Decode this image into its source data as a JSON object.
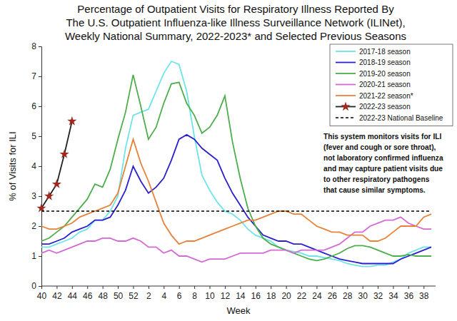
{
  "chart_data": {
    "type": "line",
    "title": [
      "Percentage of Outpatient Visits for Respiratory Illness Reported By",
      "The U.S. Outpatient Influenza-like Illness Surveillance Network (ILINet),",
      "Weekly National Summary, 2022-2023* and Selected Previous Seasons"
    ],
    "x_label": "Week",
    "y_label": "% of Visits for ILI",
    "annotation": [
      "This system monitors visits for ILI",
      "(fever and cough or sore throat),",
      "not laboratory confirmed influenza",
      "and may capture patient visits due",
      "to other respiratory pathogens",
      "that cause similar symptoms."
    ],
    "categories": [
      "40",
      null,
      "42",
      null,
      "44",
      null,
      "46",
      null,
      "48",
      null,
      "50",
      null,
      "52",
      null,
      "2",
      null,
      "4",
      null,
      "6",
      null,
      "8",
      null,
      "10",
      null,
      "12",
      null,
      "14",
      null,
      "16",
      null,
      "18",
      null,
      "20",
      null,
      "22",
      null,
      "24",
      null,
      "26",
      null,
      "28",
      null,
      "30",
      null,
      "32",
      null,
      "34",
      null,
      "36",
      null,
      "38",
      null
    ],
    "ylim": [
      0,
      8
    ],
    "yticks": [
      0,
      1,
      2,
      3,
      4,
      5,
      6,
      7,
      8
    ],
    "grid": false,
    "legend": "upper right",
    "series": [
      {
        "name": "2017-18 season",
        "color": "#6fe3ea",
        "values": [
          1.3,
          1.3,
          1.4,
          1.5,
          1.6,
          1.8,
          1.9,
          2.2,
          2.2,
          2.5,
          3.0,
          4.6,
          5.7,
          5.8,
          5.9,
          6.5,
          7.1,
          7.5,
          7.4,
          6.5,
          5.0,
          3.7,
          3.2,
          2.8,
          2.5,
          2.4,
          2.2,
          1.9,
          1.7,
          1.6,
          1.5,
          1.3,
          1.2,
          1.15,
          1.1,
          1.0,
          1.0,
          0.95,
          0.9,
          0.85,
          0.75,
          0.7,
          0.65,
          0.65,
          0.7,
          0.7,
          0.8,
          0.9,
          1.1,
          1.2,
          1.3,
          1.3
        ]
      },
      {
        "name": "2018-19 season",
        "color": "#2b1fcf",
        "values": [
          1.4,
          1.4,
          1.5,
          1.6,
          1.8,
          1.9,
          2.0,
          2.2,
          2.2,
          2.3,
          2.7,
          3.2,
          4.0,
          3.5,
          3.1,
          3.3,
          3.6,
          4.2,
          4.9,
          5.05,
          4.9,
          4.6,
          4.4,
          4.2,
          3.6,
          3.1,
          2.7,
          2.3,
          2.0,
          1.7,
          1.6,
          1.5,
          1.5,
          1.4,
          1.4,
          1.3,
          1.2,
          1.1,
          1.0,
          0.9,
          0.85,
          0.8,
          0.75,
          0.75,
          0.75,
          0.75,
          0.75,
          0.9,
          1.0,
          1.1,
          1.2,
          1.3
        ]
      },
      {
        "name": "2019-20 season",
        "color": "#4cae4c",
        "values": [
          1.5,
          1.6,
          1.8,
          2.0,
          2.3,
          2.6,
          2.9,
          3.4,
          3.3,
          3.9,
          4.9,
          5.8,
          7.05,
          6.0,
          4.9,
          5.3,
          6.1,
          6.75,
          6.8,
          6.1,
          5.7,
          5.1,
          5.3,
          5.7,
          6.35,
          4.8,
          3.6,
          2.6,
          2.0,
          1.6,
          1.4,
          1.3,
          1.2,
          1.1,
          1.0,
          0.9,
          0.85,
          0.9,
          1.0,
          1.1,
          1.25,
          1.35,
          1.35,
          1.3,
          1.2,
          1.1,
          1.0,
          1.0,
          1.05,
          1.0,
          1.0,
          1.0
        ]
      },
      {
        "name": "2020-21 season",
        "color": "#d36ad3",
        "values": [
          1.1,
          1.2,
          1.1,
          1.2,
          1.3,
          1.4,
          1.5,
          1.5,
          1.6,
          1.6,
          1.5,
          1.5,
          1.6,
          1.5,
          1.3,
          1.3,
          1.1,
          1.2,
          1.0,
          1.0,
          0.9,
          0.8,
          0.9,
          0.9,
          0.9,
          1.0,
          1.1,
          1.1,
          1.1,
          1.1,
          1.2,
          1.2,
          1.2,
          1.1,
          1.2,
          1.2,
          1.2,
          1.2,
          1.3,
          1.4,
          1.6,
          1.8,
          1.8,
          2.0,
          2.1,
          2.2,
          2.2,
          2.3,
          2.1,
          2.0,
          1.9,
          1.9
        ]
      },
      {
        "name": "2021-22 season*",
        "color": "#e8823a",
        "values": [
          2.0,
          1.9,
          1.9,
          2.0,
          2.1,
          2.3,
          2.4,
          2.5,
          2.6,
          2.7,
          3.1,
          4.0,
          4.9,
          4.1,
          3.5,
          2.8,
          2.1,
          1.7,
          1.4,
          1.5,
          1.5,
          1.6,
          1.7,
          1.8,
          1.9,
          2.0,
          2.1,
          2.2,
          2.2,
          2.3,
          2.4,
          2.5,
          2.5,
          2.4,
          2.4,
          2.2,
          2.0,
          1.9,
          1.8,
          1.8,
          1.7,
          1.7,
          1.7,
          1.5,
          1.5,
          1.6,
          1.8,
          2.0,
          2.0,
          2.0,
          2.3,
          2.4
        ]
      },
      {
        "name": "2022-23 season",
        "color": "#a0281e",
        "marker": "star",
        "values": [
          2.6,
          3.0,
          3.4,
          4.4,
          5.5,
          null,
          null,
          null,
          null,
          null,
          null,
          null,
          null,
          null,
          null,
          null,
          null,
          null,
          null,
          null,
          null,
          null,
          null,
          null,
          null,
          null,
          null,
          null,
          null,
          null,
          null,
          null,
          null,
          null,
          null,
          null,
          null,
          null,
          null,
          null,
          null,
          null,
          null,
          null,
          null,
          null,
          null,
          null,
          null,
          null,
          null,
          null
        ]
      },
      {
        "name": "2022-23 National Baseline",
        "color": "#000000",
        "line_style": "dashed",
        "values": [
          2.5,
          2.5,
          2.5,
          2.5,
          2.5,
          2.5,
          2.5,
          2.5,
          2.5,
          2.5,
          2.5,
          2.5,
          2.5,
          2.5,
          2.5,
          2.5,
          2.5,
          2.5,
          2.5,
          2.5,
          2.5,
          2.5,
          2.5,
          2.5,
          2.5,
          2.5,
          2.5,
          2.5,
          2.5,
          2.5,
          2.5,
          2.5,
          2.5,
          2.5,
          2.5,
          2.5,
          2.5,
          2.5,
          2.5,
          2.5,
          2.5,
          2.5,
          2.5,
          2.5,
          2.5,
          2.5,
          2.5,
          2.5,
          2.5,
          2.5,
          2.5,
          2.5
        ]
      }
    ]
  }
}
